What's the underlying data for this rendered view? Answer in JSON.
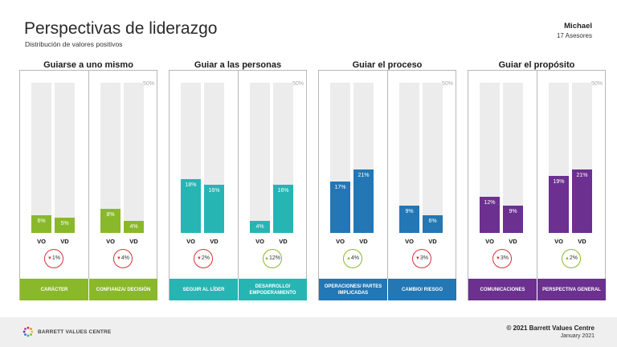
{
  "header": {
    "title": "Perspectivas de liderazgo",
    "subtitle": "Distribución de valores positivos",
    "person_name": "Michael",
    "person_sub": "17 Asesores"
  },
  "colors": {
    "green": "#8ab82b",
    "teal": "#26b5b3",
    "blue": "#2277b4",
    "purple": "#6b3090",
    "down": "#d6333a",
    "up": "#8ab82b",
    "bar_bg": "#ececec"
  },
  "chart_data": {
    "type": "bar",
    "ylim": [
      0,
      50
    ],
    "max_label": "50%",
    "series_labels": [
      "VO",
      "VD"
    ],
    "groups": [
      {
        "title": "Guiarse a uno mismo",
        "color": "#8ab82b",
        "categories": [
          {
            "name": "CARÁCTER",
            "vo": 6,
            "vd": 5,
            "delta": "1%",
            "direction": "down"
          },
          {
            "name": "CONFIANZA/ DECISIÓN",
            "vo": 8,
            "vd": 4,
            "delta": "4%",
            "direction": "down"
          }
        ]
      },
      {
        "title": "Guiar a las personas",
        "color": "#26b5b3",
        "categories": [
          {
            "name": "SEGUIR AL LÍDER",
            "vo": 18,
            "vd": 16,
            "delta": "2%",
            "direction": "down"
          },
          {
            "name": "DESARROLLO/ EMPODERAMIENTO",
            "vo": 4,
            "vd": 16,
            "delta": "12%",
            "direction": "up"
          }
        ]
      },
      {
        "title": "Guiar el proceso",
        "color": "#2277b4",
        "categories": [
          {
            "name": "OPERACIONES/ PARTES IMPLICADAS",
            "vo": 17,
            "vd": 21,
            "delta": "4%",
            "direction": "up"
          },
          {
            "name": "CAMBIO/ RIESGO",
            "vo": 9,
            "vd": 6,
            "delta": "3%",
            "direction": "down"
          }
        ]
      },
      {
        "title": "Guiar el propósito",
        "color": "#6b3090",
        "categories": [
          {
            "name": "COMUNICACIONES",
            "vo": 12,
            "vd": 9,
            "delta": "3%",
            "direction": "down"
          },
          {
            "name": "PERSPECTIVA GENERAL",
            "vo": 19,
            "vd": 21,
            "delta": "2%",
            "direction": "up"
          }
        ]
      }
    ]
  },
  "footer": {
    "logo_text": "BARRETT VALUES CENTRE",
    "copyright": "© 2021 Barrett Values Centre",
    "date": "January 2021"
  }
}
